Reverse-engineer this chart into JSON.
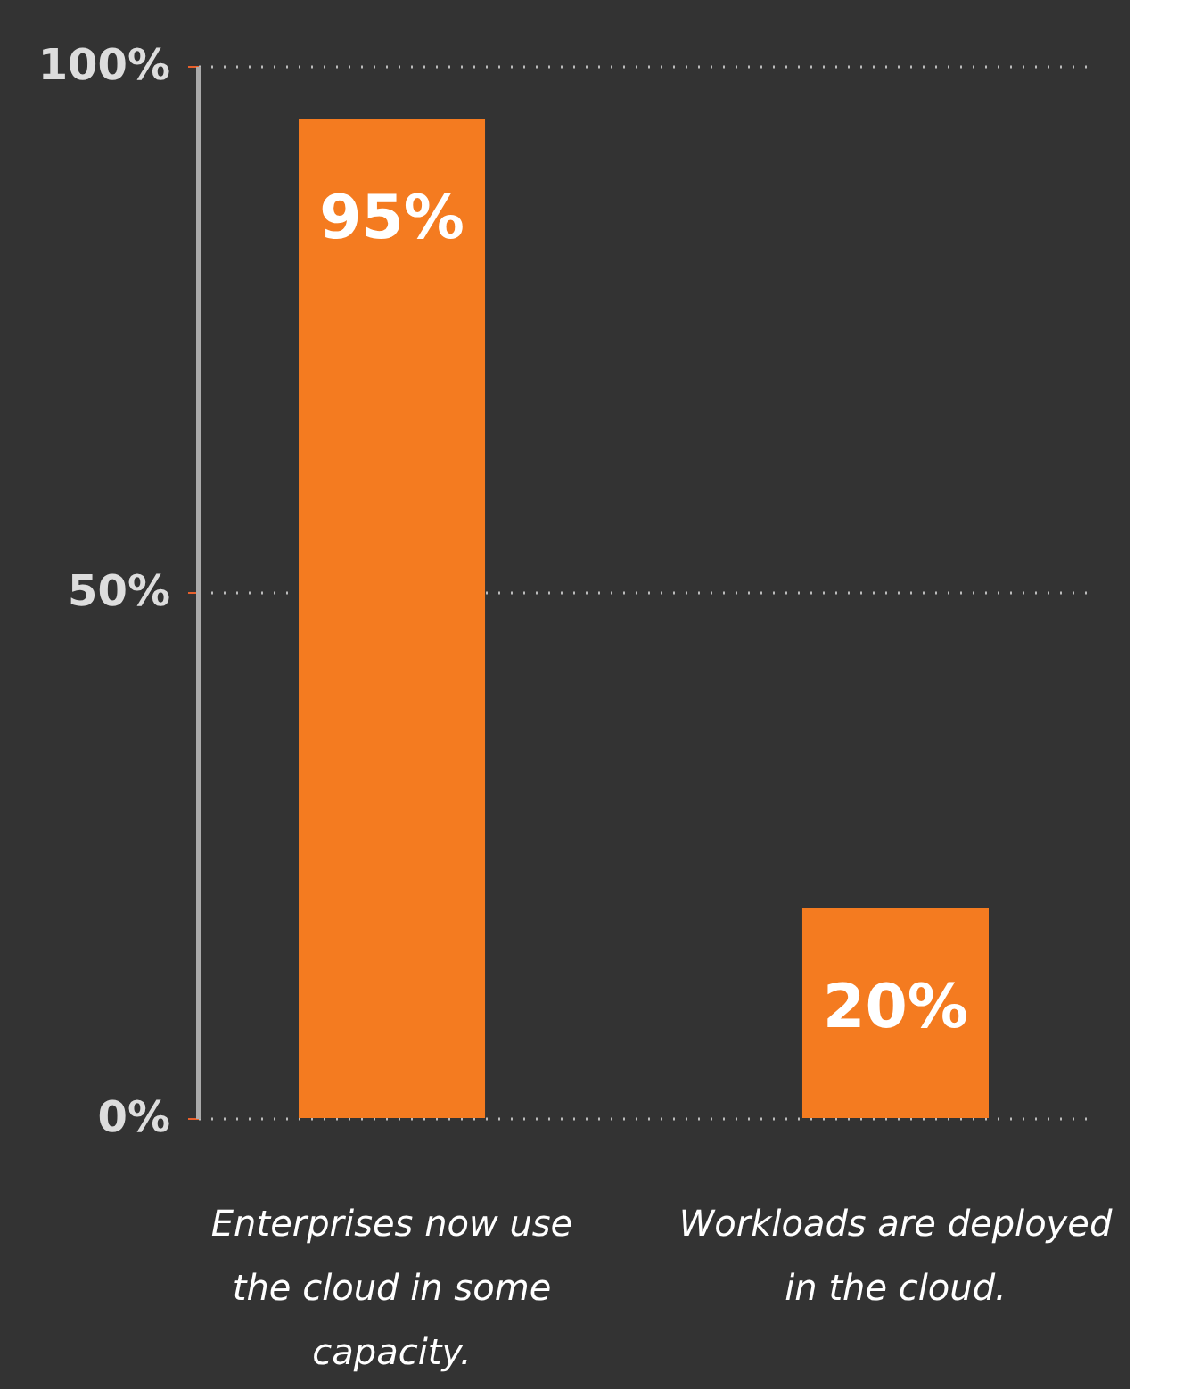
{
  "chart_data": {
    "type": "bar",
    "categories": [
      "Enterprises now use the cloud in some capacity.",
      "Workloads are deployed in the cloud."
    ],
    "values": [
      95,
      20
    ],
    "color": "#f47b20",
    "value_labels": [
      "95%",
      "20%"
    ],
    "ylim": [
      0,
      100
    ],
    "yticks": [
      {
        "value": 0,
        "label": "0%"
      },
      {
        "value": 50,
        "label": "50%"
      },
      {
        "value": 100,
        "label": "100%"
      }
    ],
    "grid": "y"
  }
}
